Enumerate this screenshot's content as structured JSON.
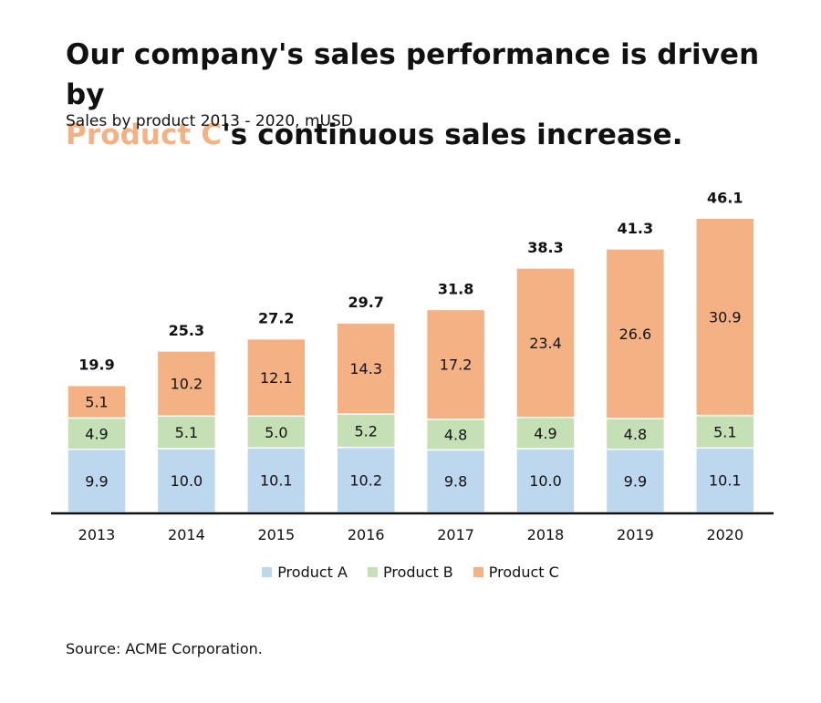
{
  "title": {
    "line1": "Our company's sales performance is driven by",
    "highlight": "Product C",
    "line2_rest": "'s continuous sales increase."
  },
  "subtitle": "Sales by product 2013 - 2020, mUSD",
  "source": "Source: ACME Corporation.",
  "colors": {
    "product_a": "#bdd7ee",
    "product_b": "#c5e0b4",
    "product_c": "#f4b183",
    "highlight": "#f4b183",
    "axis": "#111111"
  },
  "chart_data": {
    "type": "bar",
    "stacked": true,
    "title": "Our company's sales performance is driven by Product C's continuous sales increase.",
    "subtitle": "Sales by product 2013 - 2020, mUSD",
    "categories": [
      "2013",
      "2014",
      "2015",
      "2016",
      "2017",
      "2018",
      "2019",
      "2020"
    ],
    "series": [
      {
        "name": "Product A",
        "values": [
          9.9,
          10.0,
          10.1,
          10.2,
          9.8,
          10.0,
          9.9,
          10.1
        ]
      },
      {
        "name": "Product B",
        "values": [
          4.9,
          5.1,
          5.0,
          5.2,
          4.8,
          4.9,
          4.8,
          5.1
        ]
      },
      {
        "name": "Product C",
        "values": [
          5.1,
          10.2,
          12.1,
          14.3,
          17.2,
          23.4,
          26.6,
          30.9
        ]
      }
    ],
    "totals": [
      19.9,
      25.3,
      27.2,
      29.7,
      31.8,
      38.3,
      41.3,
      46.1
    ],
    "xlabel": "",
    "ylabel": "",
    "ylim": [
      0,
      50
    ],
    "grid": false,
    "legend_position": "bottom"
  }
}
